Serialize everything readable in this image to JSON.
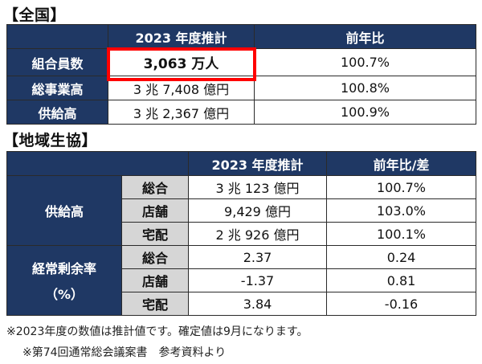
{
  "section1": {
    "heading": "【全国】",
    "header": [
      "2023 年度推計",
      "前年比"
    ],
    "rows": [
      {
        "label": "組合員数",
        "value": "3,063 万人",
        "ratio": "100.7%"
      },
      {
        "label": "総事業高",
        "value": "3 兆 7,408 億円",
        "ratio": "100.8%"
      },
      {
        "label": "供給高",
        "value": "3 兆 2,367 億円",
        "ratio": "100.9%"
      }
    ]
  },
  "section2": {
    "heading": "【地域生協】",
    "header": [
      "2023 年度推計",
      "前年比/差"
    ],
    "groups": [
      {
        "label": "供給高",
        "rows": [
          {
            "sub": "総合",
            "value": "3 兆 123 億円",
            "ratio": "100.7%"
          },
          {
            "sub": "店舗",
            "value": "9,429 億円",
            "ratio": "103.0%"
          },
          {
            "sub": "宅配",
            "value": "2 兆 926 億円",
            "ratio": "100.1%"
          }
        ]
      },
      {
        "label": "経常剰余率",
        "label2": "（%）",
        "rows": [
          {
            "sub": "総合",
            "value": "2.37",
            "ratio": "0.24"
          },
          {
            "sub": "店舗",
            "value": "-1.37",
            "ratio": "0.81"
          },
          {
            "sub": "宅配",
            "value": "3.84",
            "ratio": "-0.16"
          }
        ]
      }
    ]
  },
  "notes": [
    "※2023年度の数値は推計値です。確定値は9月になります。",
    "※第74回通常総会議案書　参考資料より"
  ],
  "colors": {
    "header": "#1f3864",
    "subcell": "#d6d6d6",
    "highlight": "#ff0000"
  }
}
